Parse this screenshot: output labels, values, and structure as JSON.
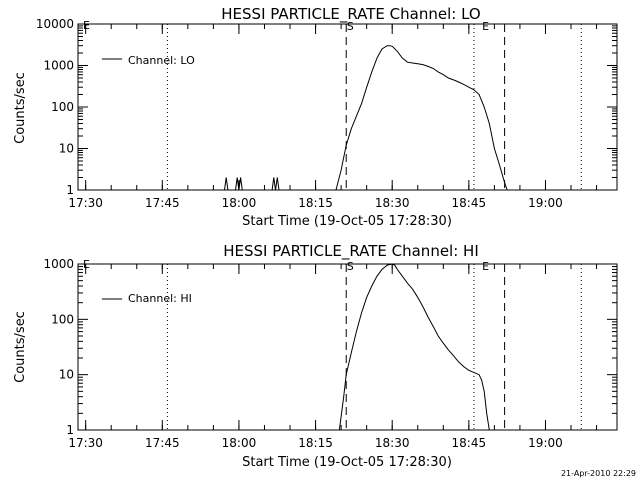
{
  "chart_data": [
    {
      "type": "line",
      "title": "HESSI PARTICLE_RATE Channel: LO",
      "xlabel": "Start Time (19-Oct-05 17:28:30)",
      "ylabel": "Counts/sec",
      "xlim": [
        "17:28:30",
        "19:14"
      ],
      "ylim": [
        1,
        10000
      ],
      "yscale": "log",
      "x_tick_labels": [
        "17:30",
        "17:45",
        "18:00",
        "18:15",
        "18:30",
        "18:45",
        "19:00"
      ],
      "y_tick_labels": [
        "1",
        "10",
        "100",
        "1000",
        "10000"
      ],
      "legend": {
        "entries": [
          "Channel: LO"
        ],
        "position": "top-left"
      },
      "markers": [
        {
          "label": "S",
          "time": "18:21",
          "style": "dashed"
        },
        {
          "label": "E",
          "time": "18:52",
          "style": "dashed"
        }
      ],
      "dotted_lines": [
        "17:46",
        "18:46",
        "19:07"
      ],
      "corner_mark": "E",
      "series": [
        {
          "name": "Channel: LO",
          "segments": [
            {
              "x": [
                "17:57:10",
                "17:57:30",
                "17:57:50"
              ],
              "y": [
                1,
                2,
                1
              ]
            },
            {
              "x": [
                "17:59:20",
                "17:59:40",
                "18:00:00",
                "18:00:20",
                "18:00:40"
              ],
              "y": [
                1,
                2,
                1,
                2,
                1
              ]
            },
            {
              "x": [
                "18:06:30",
                "18:06:50",
                "18:07:10",
                "18:07:30",
                "18:07:50"
              ],
              "y": [
                1,
                2,
                1,
                2,
                1
              ]
            },
            {
              "x": [
                "18:19:00",
                "18:20:00",
                "18:21:00",
                "18:22:00",
                "18:23:00",
                "18:24:00",
                "18:25:00",
                "18:26:00",
                "18:27:00",
                "18:28:00",
                "18:29:00",
                "18:29:30",
                "18:30:00",
                "18:31:00",
                "18:32:00",
                "18:33:00",
                "18:34:00",
                "18:35:00",
                "18:36:00",
                "18:37:00",
                "18:38:00",
                "18:39:00",
                "18:40:00",
                "18:41:00",
                "18:42:00",
                "18:43:00",
                "18:44:00",
                "18:45:00",
                "18:46:00",
                "18:47:00",
                "18:48:00",
                "18:49:00",
                "18:50:00",
                "18:51:00",
                "18:52:00",
                "18:52:30"
              ],
              "y": [
                1,
                3,
                12,
                30,
                60,
                120,
                300,
                700,
                1500,
                2500,
                3000,
                3000,
                2900,
                2200,
                1500,
                1200,
                1150,
                1100,
                1050,
                950,
                850,
                700,
                600,
                500,
                450,
                400,
                350,
                300,
                260,
                200,
                100,
                40,
                10,
                4,
                1.5,
                1
              ]
            }
          ]
        }
      ]
    },
    {
      "type": "line",
      "title": "HESSI PARTICLE_RATE Channel: HI",
      "xlabel": "Start Time (19-Oct-05 17:28:30)",
      "ylabel": "Counts/sec",
      "xlim": [
        "17:28:30",
        "19:14"
      ],
      "ylim": [
        1,
        1000
      ],
      "yscale": "log",
      "x_tick_labels": [
        "17:30",
        "17:45",
        "18:00",
        "18:15",
        "18:30",
        "18:45",
        "19:00"
      ],
      "y_tick_labels": [
        "1",
        "10",
        "100",
        "1000"
      ],
      "legend": {
        "entries": [
          "Channel: HI"
        ],
        "position": "top-left"
      },
      "markers": [
        {
          "label": "S",
          "time": "18:21",
          "style": "dashed"
        },
        {
          "label": "E",
          "time": "18:52",
          "style": "dashed"
        }
      ],
      "dotted_lines": [
        "17:46",
        "18:46",
        "19:07"
      ],
      "corner_mark": "E",
      "series": [
        {
          "name": "Channel: HI",
          "segments": [
            {
              "x": [
                "18:19:40",
                "18:20:30",
                "18:21:00",
                "18:22:00",
                "18:23:00",
                "18:24:00",
                "18:25:00",
                "18:26:00",
                "18:27:00",
                "18:28:00",
                "18:29:00",
                "18:30:00",
                "18:30:30",
                "18:31:00",
                "18:32:00",
                "18:33:00",
                "18:34:00",
                "18:35:00",
                "18:36:00",
                "18:37:00",
                "18:38:00",
                "18:39:00",
                "18:40:00",
                "18:41:00",
                "18:42:00",
                "18:43:00",
                "18:44:00",
                "18:45:00",
                "18:46:00",
                "18:47:00",
                "18:47:30",
                "18:48:00",
                "18:48:30",
                "18:49:00"
              ],
              "y": [
                1,
                4,
                10,
                25,
                60,
                130,
                250,
                400,
                600,
                800,
                950,
                1000,
                950,
                800,
                600,
                450,
                350,
                250,
                170,
                110,
                75,
                50,
                37,
                28,
                22,
                17,
                14,
                12,
                11,
                10,
                8,
                5,
                2,
                1
              ]
            }
          ]
        }
      ]
    }
  ],
  "footer": {
    "timestamp": "21-Apr-2010 22:29"
  }
}
